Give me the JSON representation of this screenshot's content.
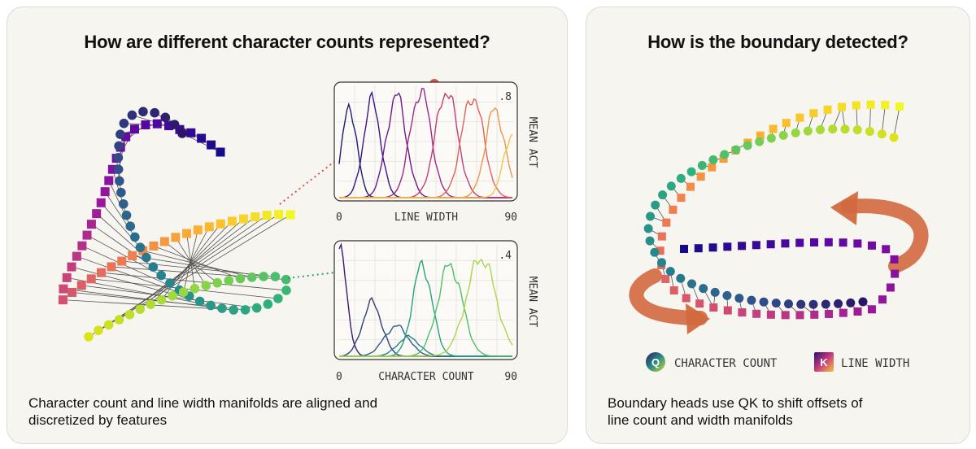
{
  "left": {
    "title": "How are different character counts represented?",
    "caption_line1": "Character count and line width manifolds are aligned and",
    "caption_line2": "discretized by features",
    "top_plot": {
      "y_axis_label": "MEAN ACT",
      "y_max_label": ".8",
      "x_axis_label": "LINE WIDTH",
      "x_min_label": "0",
      "x_max_label": "90",
      "curve_colors": [
        "#1f1b6e",
        "#3b1486",
        "#6b1a8c",
        "#9b2a86",
        "#c33f74",
        "#e0625c",
        "#ef9448",
        "#f1c64a"
      ]
    },
    "bottom_plot": {
      "y_axis_label": "MEAN ACT",
      "y_max_label": ".4",
      "x_axis_label": "CHARACTER COUNT",
      "x_min_label": "0",
      "x_max_label": "90",
      "curve_colors": [
        "#3b1a6b",
        "#2f3f7a",
        "#2b5c88",
        "#277d8a",
        "#26a27e",
        "#4cc167",
        "#a9d64c"
      ]
    },
    "connector_colors": {
      "top": "#d9534a",
      "bottom": "#2aa276"
    }
  },
  "right": {
    "title": "How is the boundary detected?",
    "caption_line1": "Boundary heads use QK to shift offsets of",
    "caption_line2": "line count and width manifolds",
    "legend": [
      {
        "badge": "Q",
        "label": "CHARACTER COUNT"
      },
      {
        "badge": "K",
        "label": "LINE WIDTH"
      }
    ],
    "arrow_color": "#d2693f"
  }
}
